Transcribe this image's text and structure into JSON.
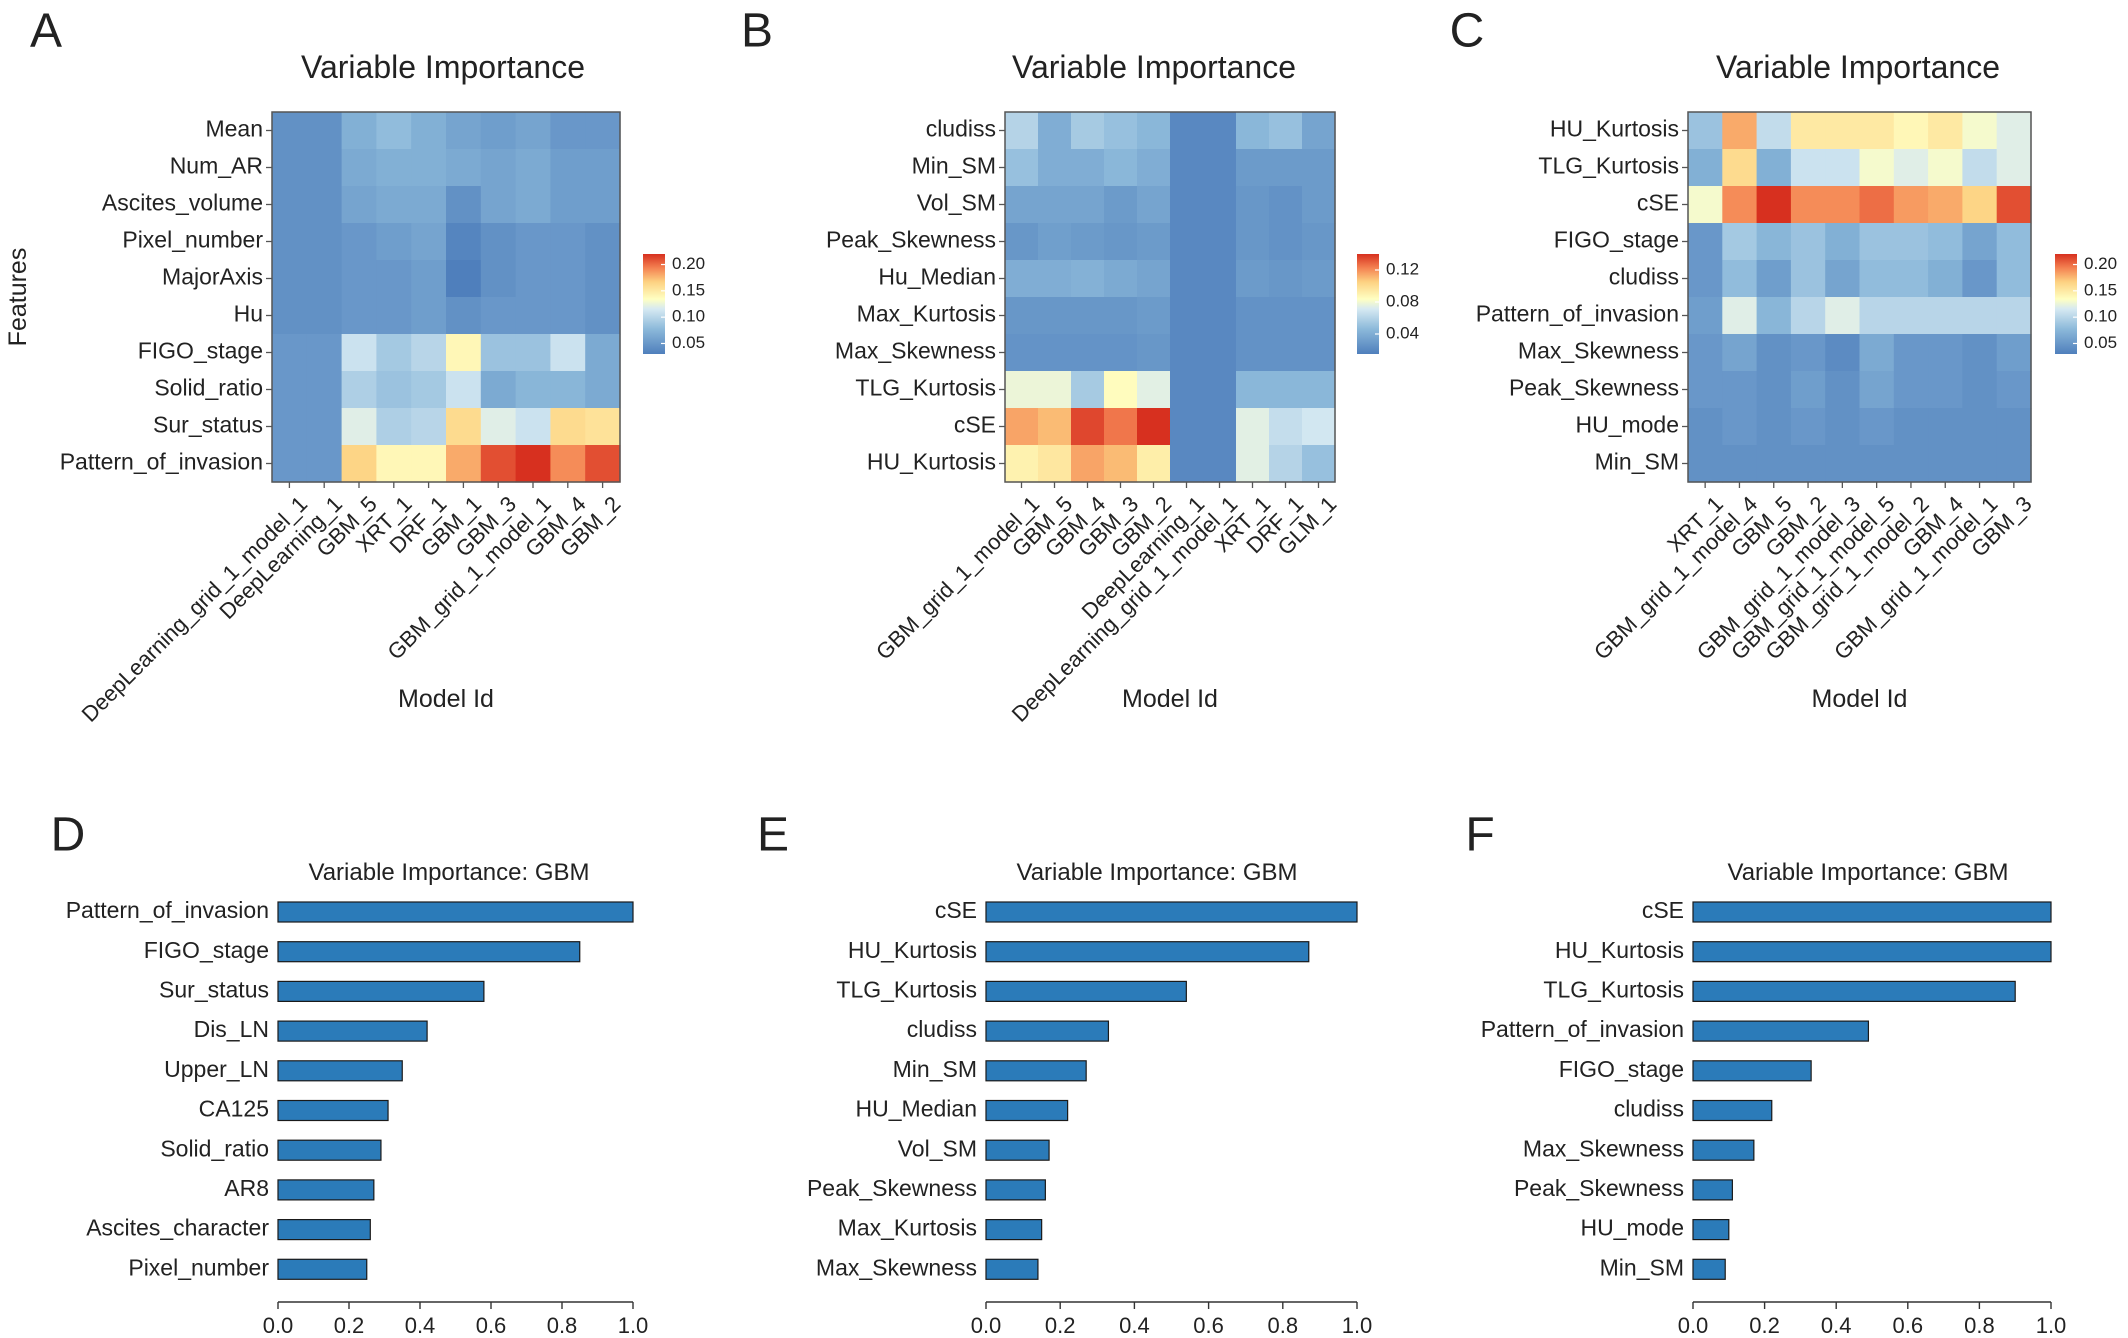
{
  "colors": {
    "heat_low": "#4F7FBC",
    "heat_mid": "#FFFFC2",
    "heat_high": "#D7301F",
    "bar_fill": "#2B7BB9",
    "bar_edge": "#1A1A1A"
  },
  "chart_data": [
    {
      "panel": "A",
      "type": "heatmap",
      "title": "Variable Importance",
      "xlabel": "Model Id",
      "ylabel": "Features",
      "rows": [
        "Mean",
        "Num_AR",
        "Ascites_volume",
        "Pixel_number",
        "MajorAxis",
        "Hu",
        "FIGO_stage",
        "Solid_ratio",
        "Sur_status",
        "Pattern_of_invasion"
      ],
      "columns": [
        "DeepLearning_grid_1_model_1",
        "DeepLearning_1",
        "GBM_5",
        "XRT_1",
        "DRF_1",
        "GBM_1",
        "GBM_3",
        "GBM_grid_1_model_1",
        "GBM_4",
        "GBM_2"
      ],
      "values": [
        [
          0.045,
          0.045,
          0.07,
          0.08,
          0.07,
          0.06,
          0.055,
          0.06,
          0.05,
          0.05
        ],
        [
          0.045,
          0.045,
          0.065,
          0.07,
          0.07,
          0.065,
          0.06,
          0.065,
          0.055,
          0.055
        ],
        [
          0.045,
          0.045,
          0.06,
          0.065,
          0.065,
          0.045,
          0.06,
          0.065,
          0.055,
          0.055
        ],
        [
          0.045,
          0.045,
          0.05,
          0.055,
          0.06,
          0.035,
          0.045,
          0.05,
          0.05,
          0.045
        ],
        [
          0.045,
          0.045,
          0.05,
          0.05,
          0.055,
          0.03,
          0.045,
          0.05,
          0.05,
          0.045
        ],
        [
          0.045,
          0.045,
          0.05,
          0.05,
          0.055,
          0.045,
          0.05,
          0.05,
          0.05,
          0.045
        ],
        [
          0.05,
          0.05,
          0.11,
          0.09,
          0.1,
          0.14,
          0.085,
          0.085,
          0.11,
          0.065
        ],
        [
          0.05,
          0.05,
          0.095,
          0.085,
          0.09,
          0.11,
          0.065,
          0.075,
          0.075,
          0.065
        ],
        [
          0.05,
          0.05,
          0.12,
          0.095,
          0.1,
          0.16,
          0.12,
          0.11,
          0.16,
          0.155
        ],
        [
          0.05,
          0.05,
          0.165,
          0.14,
          0.14,
          0.18,
          0.21,
          0.22,
          0.19,
          0.21
        ]
      ],
      "colorbar": {
        "ticks": [
          "0.05",
          "0.10",
          "0.15",
          "0.20"
        ],
        "min": 0.03,
        "max": 0.22
      }
    },
    {
      "panel": "B",
      "type": "heatmap",
      "title": "Variable Importance",
      "xlabel": "Model Id",
      "ylabel": "",
      "rows": [
        "cludiss",
        "Min_SM",
        "Vol_SM",
        "Peak_Skewness",
        "Hu_Median",
        "Max_Kurtosis",
        "Max_Skewness",
        "TLG_Kurtosis",
        "cSE",
        "HU_Kurtosis"
      ],
      "columns": [
        "GBM_grid_1_model_1",
        "GBM_5",
        "GBM_4",
        "GBM_3",
        "GBM_2",
        "DeepLearning_1",
        "DeepLearning_grid_1_model_1",
        "XRT_1",
        "DRF_1",
        "GLM_1"
      ],
      "values": [
        [
          0.06,
          0.04,
          0.055,
          0.05,
          0.045,
          0.02,
          0.02,
          0.045,
          0.05,
          0.035
        ],
        [
          0.05,
          0.04,
          0.04,
          0.045,
          0.04,
          0.02,
          0.02,
          0.03,
          0.03,
          0.03
        ],
        [
          0.035,
          0.035,
          0.035,
          0.03,
          0.035,
          0.02,
          0.02,
          0.028,
          0.025,
          0.03
        ],
        [
          0.028,
          0.032,
          0.03,
          0.028,
          0.03,
          0.02,
          0.02,
          0.028,
          0.025,
          0.028
        ],
        [
          0.04,
          0.04,
          0.042,
          0.038,
          0.035,
          0.02,
          0.02,
          0.03,
          0.028,
          0.03
        ],
        [
          0.028,
          0.028,
          0.028,
          0.028,
          0.03,
          0.02,
          0.02,
          0.025,
          0.025,
          0.025
        ],
        [
          0.026,
          0.026,
          0.026,
          0.026,
          0.028,
          0.02,
          0.02,
          0.025,
          0.025,
          0.025
        ],
        [
          0.078,
          0.078,
          0.055,
          0.085,
          0.075,
          0.02,
          0.02,
          0.045,
          0.045,
          0.045
        ],
        [
          0.115,
          0.11,
          0.135,
          0.125,
          0.14,
          0.02,
          0.02,
          0.075,
          0.065,
          0.07
        ],
        [
          0.09,
          0.095,
          0.115,
          0.11,
          0.092,
          0.02,
          0.02,
          0.075,
          0.06,
          0.05
        ]
      ],
      "colorbar": {
        "ticks": [
          "0.12",
          "0.08",
          "0.04"
        ],
        "min": 0.015,
        "max": 0.14
      }
    },
    {
      "panel": "C",
      "type": "heatmap",
      "title": "Variable Importance",
      "xlabel": "Model Id",
      "ylabel": "",
      "rows": [
        "HU_Kurtosis",
        "TLG_Kurtosis",
        "cSE",
        "FIGO_stage",
        "cludiss",
        "Pattern_of_invasion",
        "Max_Skewness",
        "Peak_Skewness",
        "HU_mode",
        "Min_SM"
      ],
      "columns": [
        "XRT_1",
        "GBM_grid_1_model_4",
        "GBM_5",
        "GBM_2",
        "GBM_grid_1_model_3",
        "GBM_grid_1_model_5",
        "GBM_grid_1_model_2",
        "GBM_4",
        "GBM_grid_1_model_1",
        "GBM_3"
      ],
      "values": [
        [
          0.085,
          0.18,
          0.105,
          0.15,
          0.15,
          0.15,
          0.14,
          0.15,
          0.13,
          0.12
        ],
        [
          0.07,
          0.16,
          0.07,
          0.11,
          0.11,
          0.13,
          0.12,
          0.13,
          0.105,
          0.12
        ],
        [
          0.13,
          0.19,
          0.22,
          0.19,
          0.19,
          0.2,
          0.185,
          0.18,
          0.165,
          0.21
        ],
        [
          0.05,
          0.09,
          0.075,
          0.085,
          0.07,
          0.085,
          0.085,
          0.08,
          0.06,
          0.08
        ],
        [
          0.05,
          0.08,
          0.055,
          0.085,
          0.06,
          0.08,
          0.08,
          0.07,
          0.05,
          0.08
        ],
        [
          0.055,
          0.12,
          0.075,
          0.1,
          0.12,
          0.1,
          0.1,
          0.1,
          0.1,
          0.1
        ],
        [
          0.05,
          0.06,
          0.045,
          0.05,
          0.04,
          0.065,
          0.05,
          0.05,
          0.045,
          0.055
        ],
        [
          0.05,
          0.05,
          0.045,
          0.055,
          0.045,
          0.06,
          0.05,
          0.05,
          0.045,
          0.05
        ],
        [
          0.045,
          0.05,
          0.045,
          0.05,
          0.045,
          0.05,
          0.045,
          0.045,
          0.045,
          0.045
        ],
        [
          0.045,
          0.045,
          0.045,
          0.045,
          0.045,
          0.045,
          0.045,
          0.045,
          0.045,
          0.045
        ]
      ],
      "colorbar": {
        "ticks": [
          "0.20",
          "0.15",
          "0.10",
          "0.05"
        ],
        "min": 0.03,
        "max": 0.22
      }
    },
    {
      "panel": "D",
      "type": "bar",
      "title": "Variable Importance: GBM",
      "categories": [
        "Pattern_of_invasion",
        "FIGO_stage",
        "Sur_status",
        "Dis_LN",
        "Upper_LN",
        "CA125",
        "Solid_ratio",
        "AR8",
        "Ascites_character",
        "Pixel_number"
      ],
      "values": [
        1.0,
        0.85,
        0.58,
        0.42,
        0.35,
        0.31,
        0.29,
        0.27,
        0.26,
        0.25
      ],
      "xlim": [
        0,
        1.0
      ],
      "xticks": [
        "0.0",
        "0.2",
        "0.4",
        "0.6",
        "0.8",
        "1.0"
      ]
    },
    {
      "panel": "E",
      "type": "bar",
      "title": "Variable Importance: GBM",
      "categories": [
        "cSE",
        "HU_Kurtosis",
        "TLG_Kurtosis",
        "cludiss",
        "Min_SM",
        "HU_Median",
        "Vol_SM",
        "Peak_Skewness",
        "Max_Kurtosis",
        "Max_Skewness"
      ],
      "values": [
        1.0,
        0.87,
        0.54,
        0.33,
        0.27,
        0.22,
        0.17,
        0.16,
        0.15,
        0.14
      ],
      "xlim": [
        0,
        1.0
      ],
      "xticks": [
        "0.0",
        "0.2",
        "0.4",
        "0.6",
        "0.8",
        "1.0"
      ]
    },
    {
      "panel": "F",
      "type": "bar",
      "title": "Variable Importance: GBM",
      "categories": [
        "cSE",
        "HU_Kurtosis",
        "TLG_Kurtosis",
        "Pattern_of_invasion",
        "FIGO_stage",
        "cludiss",
        "Max_Skewness",
        "Peak_Skewness",
        "HU_mode",
        "Min_SM"
      ],
      "values": [
        1.0,
        1.0,
        0.9,
        0.49,
        0.33,
        0.22,
        0.17,
        0.11,
        0.1,
        0.09
      ],
      "xlim": [
        0,
        1.0
      ],
      "xticks": [
        "0.0",
        "0.2",
        "0.4",
        "0.6",
        "0.8",
        "1.0"
      ]
    }
  ]
}
